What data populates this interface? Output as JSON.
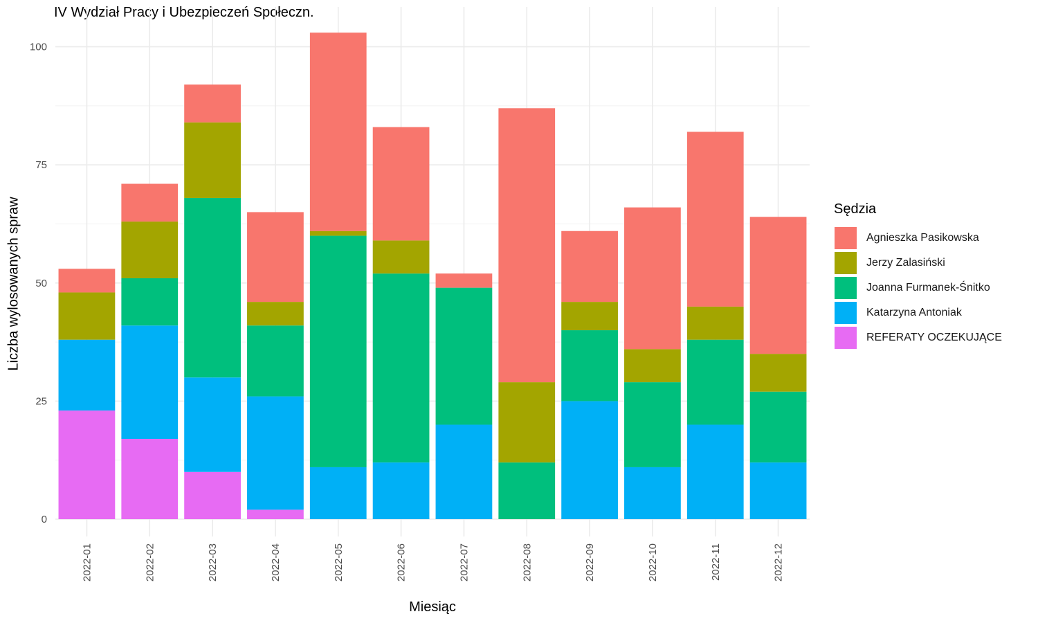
{
  "chart_data": {
    "type": "bar",
    "stacked": true,
    "title": "IV Wydział Pracy i Ubezpieczeń Społeczn.",
    "xlabel": "Miesiąc",
    "ylabel": "Liczba wylosowanych spraw",
    "ylim": [
      0,
      105
    ],
    "yticks": [
      0,
      25,
      50,
      75,
      100
    ],
    "grid": true,
    "legend_title": "Sędzia",
    "legend_position": "right",
    "categories": [
      "2022-01",
      "2022-02",
      "2022-03",
      "2022-04",
      "2022-05",
      "2022-06",
      "2022-07",
      "2022-08",
      "2022-09",
      "2022-10",
      "2022-11",
      "2022-12"
    ],
    "series": [
      {
        "name": "REFERATY OCZEKUJĄCE",
        "color": "#E76BF3",
        "values": [
          23,
          17,
          10,
          2,
          0,
          0,
          0,
          0,
          0,
          0,
          0,
          0
        ]
      },
      {
        "name": "Katarzyna Antoniak",
        "color": "#00B0F6",
        "values": [
          15,
          24,
          20,
          24,
          11,
          12,
          20,
          0,
          25,
          11,
          20,
          12
        ]
      },
      {
        "name": "Joanna Furmanek-Śnitko",
        "color": "#00BF7D",
        "values": [
          0,
          10,
          38,
          15,
          49,
          40,
          29,
          12,
          15,
          18,
          18,
          15
        ]
      },
      {
        "name": "Jerzy Zalasiński",
        "color": "#A3A500",
        "values": [
          10,
          12,
          16,
          5,
          1,
          7,
          0,
          17,
          6,
          7,
          7,
          8
        ]
      },
      {
        "name": "Agnieszka Pasikowska",
        "color": "#F8766D",
        "values": [
          5,
          8,
          8,
          19,
          42,
          24,
          3,
          58,
          15,
          30,
          37,
          29
        ]
      }
    ]
  }
}
